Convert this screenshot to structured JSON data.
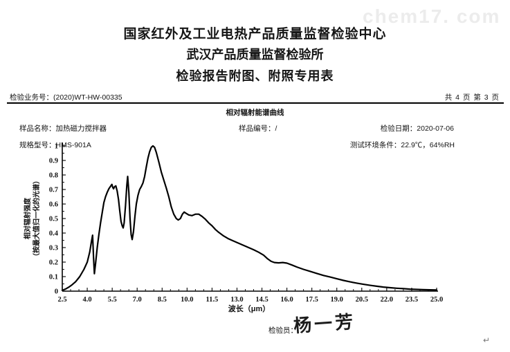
{
  "watermark": "chem17. com",
  "header": {
    "line1": "国家红外及工业电热产品质量监督检验中心",
    "line2": "武汉产品质量监督检验所",
    "line3": "检验报告附图、附照专用表"
  },
  "meta": {
    "business_no": "检验业务号：(2020)WT-HW-00335",
    "page_info": "共 4 页 第 3 页"
  },
  "subtitle": "相对辐射能谱曲线",
  "sample": {
    "name": "样品名称：加热磁力搅拌器",
    "code": "样品编号：/",
    "date": "检验日期：2020-07-06",
    "model": "规格型号：HMS-901A",
    "env": "测试环境条件：22.9℃，64%RH"
  },
  "footer": {
    "inspector_label": "检验员：",
    "signature": "杨一芳",
    "return_mark": "↵"
  },
  "chart_data": {
    "type": "line",
    "title": "相对辐射能谱曲线",
    "xlabel": "波长（μm）",
    "ylabel_line1": "相对辐射强度",
    "ylabel_line2": "（按最大值归一化的光谱）",
    "xlim": [
      2.5,
      25.0
    ],
    "ylim": [
      0,
      1
    ],
    "grid": false,
    "legend": null,
    "line_color": "#000000",
    "axis_color": "#000000",
    "x_major_ticks": [
      2.5,
      4.0,
      5.5,
      7.0,
      8.5,
      10.0,
      11.5,
      13.0,
      14.5,
      16.0,
      17.5,
      19.0,
      20.5,
      22.0,
      23.5,
      25.0
    ],
    "x_tick_labels": [
      "2.5",
      "4.0",
      "5.5",
      "7.0",
      "8.5",
      "10.0",
      "11.5",
      "13.0",
      "14.5",
      "16.0",
      "17.5",
      "19.0",
      "20.5",
      "22.0",
      "23.5",
      "25.0"
    ],
    "x_minor_step": 0.5,
    "y_major_ticks": [
      0,
      0.1,
      0.2,
      0.3,
      0.4,
      0.5,
      0.6,
      0.7,
      0.8,
      0.9,
      1
    ],
    "y_tick_labels": [
      "0",
      "0.1",
      "0.2",
      "0.3",
      "0.4",
      "0.5",
      "0.6",
      "0.7",
      "0.8",
      "0.9",
      "1"
    ],
    "y_minor_step": 0.05,
    "points": [
      [
        2.5,
        0.005
      ],
      [
        2.7,
        0.015
      ],
      [
        2.9,
        0.028
      ],
      [
        3.1,
        0.045
      ],
      [
        3.3,
        0.065
      ],
      [
        3.55,
        0.1
      ],
      [
        3.8,
        0.15
      ],
      [
        4.0,
        0.2
      ],
      [
        4.15,
        0.27
      ],
      [
        4.25,
        0.34
      ],
      [
        4.32,
        0.385
      ],
      [
        4.38,
        0.23
      ],
      [
        4.43,
        0.12
      ],
      [
        4.5,
        0.19
      ],
      [
        4.6,
        0.3
      ],
      [
        4.7,
        0.39
      ],
      [
        4.8,
        0.47
      ],
      [
        4.9,
        0.54
      ],
      [
        5.0,
        0.61
      ],
      [
        5.1,
        0.65
      ],
      [
        5.2,
        0.68
      ],
      [
        5.3,
        0.705
      ],
      [
        5.42,
        0.725
      ],
      [
        5.48,
        0.735
      ],
      [
        5.53,
        0.715
      ],
      [
        5.58,
        0.705
      ],
      [
        5.65,
        0.72
      ],
      [
        5.72,
        0.725
      ],
      [
        5.8,
        0.69
      ],
      [
        5.88,
        0.63
      ],
      [
        5.95,
        0.555
      ],
      [
        6.03,
        0.48
      ],
      [
        6.1,
        0.45
      ],
      [
        6.16,
        0.435
      ],
      [
        6.22,
        0.47
      ],
      [
        6.3,
        0.59
      ],
      [
        6.38,
        0.73
      ],
      [
        6.43,
        0.79
      ],
      [
        6.5,
        0.68
      ],
      [
        6.57,
        0.5
      ],
      [
        6.64,
        0.39
      ],
      [
        6.7,
        0.355
      ],
      [
        6.78,
        0.41
      ],
      [
        6.87,
        0.52
      ],
      [
        6.95,
        0.6
      ],
      [
        7.05,
        0.66
      ],
      [
        7.15,
        0.7
      ],
      [
        7.25,
        0.72
      ],
      [
        7.35,
        0.745
      ],
      [
        7.45,
        0.79
      ],
      [
        7.55,
        0.855
      ],
      [
        7.65,
        0.915
      ],
      [
        7.75,
        0.96
      ],
      [
        7.85,
        0.99
      ],
      [
        7.95,
        1.0
      ],
      [
        8.05,
        0.99
      ],
      [
        8.15,
        0.955
      ],
      [
        8.3,
        0.89
      ],
      [
        8.45,
        0.82
      ],
      [
        8.6,
        0.765
      ],
      [
        8.75,
        0.71
      ],
      [
        8.9,
        0.65
      ],
      [
        9.05,
        0.58
      ],
      [
        9.2,
        0.53
      ],
      [
        9.35,
        0.5
      ],
      [
        9.47,
        0.49
      ],
      [
        9.6,
        0.5
      ],
      [
        9.72,
        0.53
      ],
      [
        9.83,
        0.545
      ],
      [
        9.95,
        0.535
      ],
      [
        10.1,
        0.525
      ],
      [
        10.3,
        0.52
      ],
      [
        10.5,
        0.53
      ],
      [
        10.7,
        0.53
      ],
      [
        10.9,
        0.515
      ],
      [
        11.1,
        0.495
      ],
      [
        11.3,
        0.47
      ],
      [
        11.5,
        0.45
      ],
      [
        11.7,
        0.425
      ],
      [
        11.9,
        0.405
      ],
      [
        12.2,
        0.38
      ],
      [
        12.5,
        0.36
      ],
      [
        12.8,
        0.345
      ],
      [
        13.1,
        0.33
      ],
      [
        13.4,
        0.315
      ],
      [
        13.7,
        0.3
      ],
      [
        14.0,
        0.285
      ],
      [
        14.3,
        0.268
      ],
      [
        14.6,
        0.248
      ],
      [
        14.85,
        0.222
      ],
      [
        15.05,
        0.205
      ],
      [
        15.25,
        0.197
      ],
      [
        15.5,
        0.195
      ],
      [
        15.75,
        0.197
      ],
      [
        16.0,
        0.193
      ],
      [
        16.3,
        0.18
      ],
      [
        16.6,
        0.166
      ],
      [
        17.0,
        0.15
      ],
      [
        17.4,
        0.136
      ],
      [
        17.8,
        0.122
      ],
      [
        18.2,
        0.108
      ],
      [
        18.6,
        0.097
      ],
      [
        19.0,
        0.085
      ],
      [
        19.4,
        0.074
      ],
      [
        19.8,
        0.064
      ],
      [
        20.2,
        0.055
      ],
      [
        20.6,
        0.047
      ],
      [
        21.0,
        0.04
      ],
      [
        21.4,
        0.034
      ],
      [
        21.8,
        0.028
      ],
      [
        22.2,
        0.024
      ],
      [
        22.6,
        0.02
      ],
      [
        23.0,
        0.017
      ],
      [
        23.4,
        0.014
      ],
      [
        23.8,
        0.012
      ],
      [
        24.2,
        0.01
      ],
      [
        24.6,
        0.009
      ],
      [
        25.0,
        0.008
      ]
    ]
  }
}
